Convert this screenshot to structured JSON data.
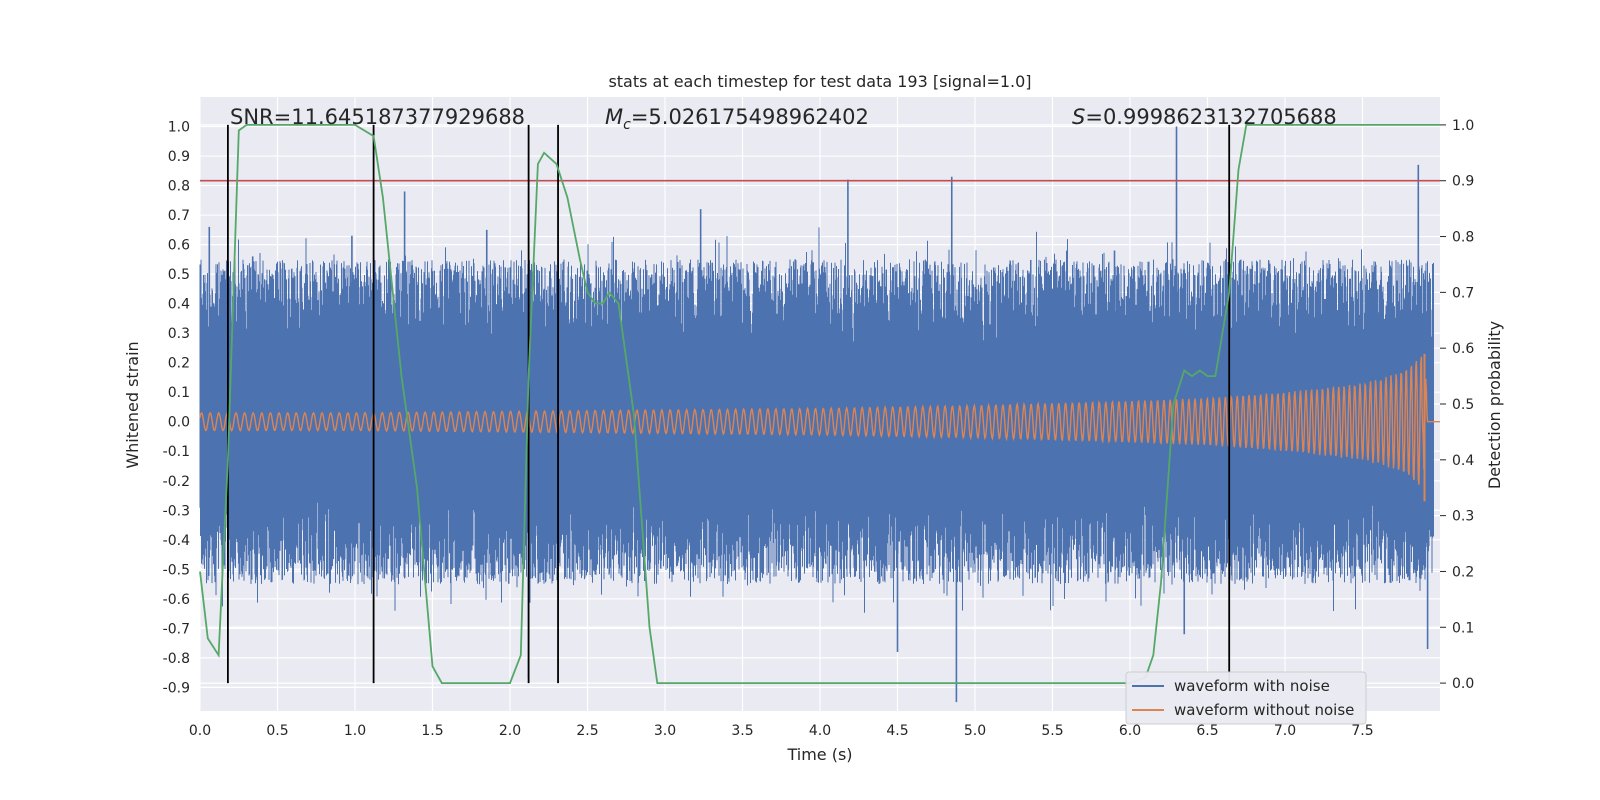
{
  "chart_data": {
    "type": "line",
    "title": "stats at each timestep for test data 193 [signal=1.0]",
    "xlabel": "Time (s)",
    "ylabel_left": "Whitened strain",
    "ylabel_right": "Detection probability",
    "xlim": [
      0.0,
      8.0
    ],
    "ylim_left": [
      -0.98,
      1.1
    ],
    "ylim_right": [
      -0.05,
      1.05
    ],
    "x_ticks": [
      "0.0",
      "0.5",
      "1.0",
      "1.5",
      "2.0",
      "2.5",
      "3.0",
      "3.5",
      "4.0",
      "4.5",
      "5.0",
      "5.5",
      "6.0",
      "6.5",
      "7.0",
      "7.5"
    ],
    "y_ticks_left": [
      "1.0",
      "0.9",
      "0.8",
      "0.7",
      "0.6",
      "0.5",
      "0.4",
      "0.3",
      "0.2",
      "0.1",
      "0.0",
      "-0.1",
      "-0.2",
      "-0.3",
      "-0.4",
      "-0.5",
      "-0.6",
      "-0.7",
      "-0.8",
      "-0.9"
    ],
    "y_ticks_right": [
      "1.0",
      "0.9",
      "0.8",
      "0.7",
      "0.6",
      "0.5",
      "0.4",
      "0.3",
      "0.2",
      "0.1",
      "0.0"
    ],
    "annotations": {
      "snr": "SNR=11.645187377929688",
      "mc": "=5.026175498962402",
      "s": "=0.9998623132705688",
      "mc_symbol": "M",
      "mc_subscript": "c",
      "s_symbol": "S"
    },
    "threshold": {
      "axis": "right",
      "value": 0.9,
      "color": "#c44e52"
    },
    "detection_boundaries": [
      0.18,
      1.12,
      2.12,
      2.31,
      6.64
    ],
    "series": [
      {
        "name": "waveform with noise",
        "axis": "left",
        "color": "#4c72b0",
        "note": "dense noise trace, approx envelope",
        "envelope_abs": 0.55,
        "peak_spikes": [
          [
            0.06,
            0.66
          ],
          [
            0.34,
            0.56
          ],
          [
            0.98,
            0.63
          ],
          [
            1.32,
            0.78
          ],
          [
            1.85,
            0.65
          ],
          [
            2.12,
            -0.87
          ],
          [
            3.23,
            0.72
          ],
          [
            3.84,
            0.55
          ],
          [
            4.18,
            0.82
          ],
          [
            4.5,
            -0.78
          ],
          [
            4.85,
            0.83
          ],
          [
            4.88,
            -0.95
          ],
          [
            5.9,
            0.58
          ],
          [
            6.3,
            1.0
          ],
          [
            6.35,
            -0.72
          ],
          [
            7.28,
            0.52
          ],
          [
            7.86,
            0.87
          ],
          [
            7.92,
            -0.77
          ]
        ]
      },
      {
        "name": "waveform without noise",
        "axis": "left",
        "color": "#dd8452",
        "note": "chirp signal, amplitude envelope (x, amp)",
        "envelope": [
          [
            0.0,
            0.03
          ],
          [
            1.0,
            0.03
          ],
          [
            2.0,
            0.035
          ],
          [
            3.0,
            0.04
          ],
          [
            4.0,
            0.045
          ],
          [
            5.0,
            0.055
          ],
          [
            6.0,
            0.07
          ],
          [
            6.5,
            0.08
          ],
          [
            7.0,
            0.1
          ],
          [
            7.5,
            0.13
          ],
          [
            7.7,
            0.16
          ],
          [
            7.8,
            0.19
          ],
          [
            7.88,
            0.23
          ],
          [
            7.9,
            -0.27
          ],
          [
            7.92,
            0.0
          ],
          [
            8.0,
            0.0
          ]
        ]
      },
      {
        "name": "Detection probability",
        "axis": "right",
        "color": "#55a868",
        "x": [
          0.0,
          0.05,
          0.12,
          0.18,
          0.25,
          0.3,
          0.5,
          1.0,
          1.12,
          1.18,
          1.3,
          1.4,
          1.5,
          1.56,
          1.7,
          2.0,
          2.07,
          2.12,
          2.18,
          2.22,
          2.3,
          2.37,
          2.45,
          2.5,
          2.55,
          2.6,
          2.64,
          2.7,
          2.8,
          2.9,
          2.95,
          3.5,
          4.0,
          5.0,
          5.5,
          6.0,
          6.1,
          6.15,
          6.2,
          6.28,
          6.35,
          6.4,
          6.45,
          6.5,
          6.55,
          6.64,
          6.7,
          6.75,
          7.0,
          7.5,
          8.0
        ],
        "y": [
          0.2,
          0.08,
          0.05,
          0.4,
          0.99,
          1.0,
          1.0,
          1.0,
          0.98,
          0.87,
          0.55,
          0.35,
          0.03,
          0.0,
          0.0,
          0.0,
          0.05,
          0.55,
          0.93,
          0.95,
          0.93,
          0.87,
          0.76,
          0.7,
          0.68,
          0.68,
          0.7,
          0.68,
          0.48,
          0.1,
          0.0,
          0.0,
          0.0,
          0.0,
          0.0,
          0.0,
          0.01,
          0.05,
          0.18,
          0.5,
          0.56,
          0.55,
          0.56,
          0.55,
          0.55,
          0.7,
          0.92,
          1.0,
          1.0,
          1.0,
          1.0
        ]
      }
    ],
    "legend": {
      "position": "lower-right",
      "entries": [
        {
          "label": "waveform with noise",
          "color": "#4c72b0"
        },
        {
          "label": "waveform without noise",
          "color": "#dd8452"
        }
      ]
    },
    "style": {
      "background": "#eaeaf2",
      "grid": "#ffffff",
      "vline": "#000000"
    }
  }
}
